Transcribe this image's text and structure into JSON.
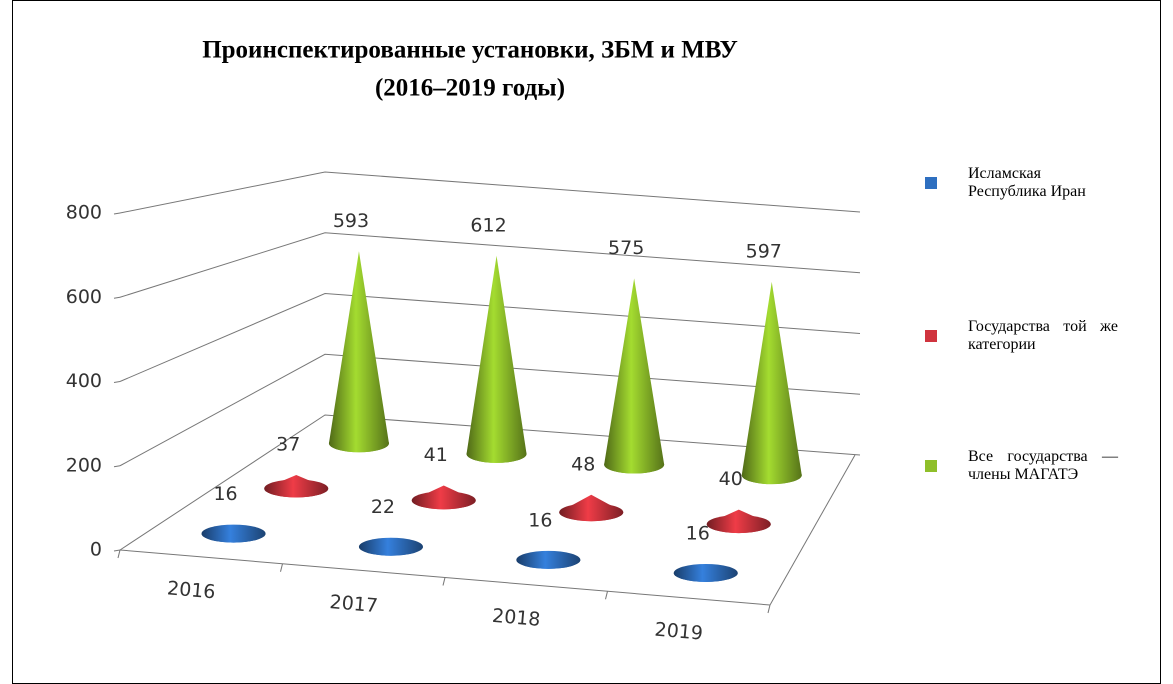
{
  "chart_data": {
    "type": "cone3d",
    "title": [
      "Проинспектированные установки, ЗБМ и МВУ",
      "(2016–2019 годы)"
    ],
    "categories": [
      "2016",
      "2017",
      "2018",
      "2019"
    ],
    "series": [
      {
        "name": "Исламская Республика Иран",
        "color": "#2e6fc0",
        "values": [
          16,
          22,
          16,
          16
        ]
      },
      {
        "name": "Государства той же категории",
        "color": "#d0343e",
        "values": [
          37,
          41,
          48,
          40
        ]
      },
      {
        "name": "Все государства — члены МАГАТЭ",
        "color": "#8fbf2a",
        "values": [
          593,
          612,
          575,
          597
        ]
      }
    ],
    "ylim": [
      0,
      800
    ],
    "yticks": [
      0,
      200,
      400,
      600,
      800
    ],
    "grid": true,
    "legend": "right"
  }
}
